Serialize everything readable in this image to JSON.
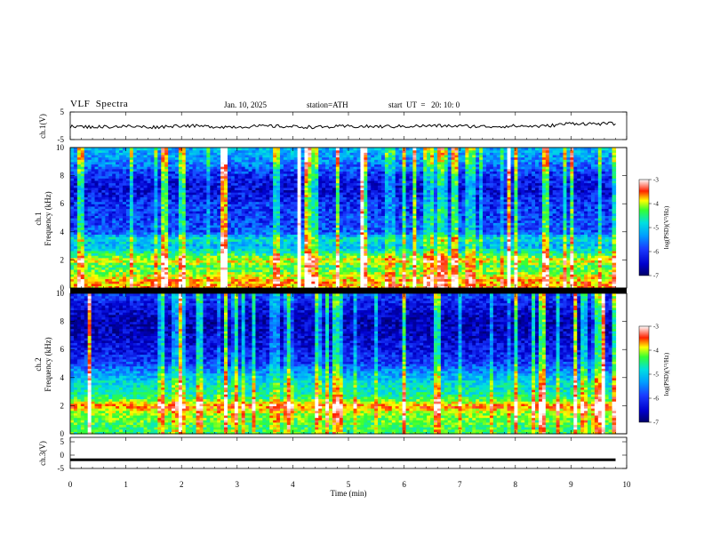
{
  "header": {
    "title": "VLF  Spectra",
    "date": "Jan. 10, 2025",
    "station": "station=ATH",
    "start": "start  UT  =   20: 10: 0"
  },
  "colors": {
    "spectrogram_scale": [
      "#000066",
      "#0000cc",
      "#1a3cff",
      "#00a0ff",
      "#00e0e0",
      "#33ff33",
      "#ffff00",
      "#ff2200",
      "#ffffff"
    ],
    "trace": "#000000"
  },
  "chart_data": [
    {
      "type": "line",
      "panel": "ch1-waveform",
      "ylabel": "ch.1(V)",
      "ylim": [
        -5,
        5
      ],
      "yticks": [
        "5",
        "-5"
      ],
      "x": [
        0,
        0.5,
        1,
        1.5,
        2,
        2.5,
        3,
        3.5,
        4,
        4.5,
        5,
        5.5,
        6,
        6.5,
        7,
        7.5,
        8,
        8.5,
        9,
        9.5,
        9.8
      ],
      "values": [
        -0.3,
        -0.4,
        -0.2,
        -0.5,
        0.1,
        -0.3,
        -0.4,
        -0.1,
        -0.3,
        -0.5,
        -0.2,
        -0.3,
        -0.2,
        0.0,
        -0.1,
        -0.3,
        -0.1,
        -0.2,
        0.9,
        0.7,
        0.8
      ],
      "grid": false
    },
    {
      "type": "heatmap",
      "panel": "ch1-spectrogram",
      "xlabel": "Time  (min)",
      "ylabel": "Frequency  (kHz)",
      "channel_label": "ch.1",
      "xlim": [
        0,
        10
      ],
      "ylim": [
        0,
        10
      ],
      "yticks": [
        "0",
        "2",
        "4",
        "6",
        "8",
        "10"
      ],
      "colorbar": {
        "label": "log(PSD)(V²/Hz)",
        "range": [
          -7,
          -3
        ],
        "ticks": [
          "-3",
          "-4",
          "-5",
          "-6",
          "-7"
        ]
      },
      "frequency_profile_log_psd": [
        {
          "f": 0.5,
          "v": -3.8
        },
        {
          "f": 1.0,
          "v": -4.2
        },
        {
          "f": 1.5,
          "v": -4.6
        },
        {
          "f": 2.0,
          "v": -4.0
        },
        {
          "f": 2.5,
          "v": -4.8
        },
        {
          "f": 3.0,
          "v": -5.4
        },
        {
          "f": 3.5,
          "v": -5.0
        },
        {
          "f": 4.0,
          "v": -5.9
        },
        {
          "f": 5.0,
          "v": -6.0
        },
        {
          "f": 6.0,
          "v": -6.1
        },
        {
          "f": 7.0,
          "v": -6.4
        },
        {
          "f": 8.0,
          "v": -6.2
        },
        {
          "f": 9.0,
          "v": -5.6
        },
        {
          "f": 10.0,
          "v": -5.3
        }
      ]
    },
    {
      "type": "heatmap",
      "panel": "ch2-spectrogram",
      "xlabel": "Time  (min)",
      "ylabel": "Frequency  (kHz)",
      "channel_label": "ch.2",
      "xlim": [
        0,
        10
      ],
      "ylim": [
        0,
        10
      ],
      "yticks": [
        "0",
        "2",
        "4",
        "6",
        "8",
        "10"
      ],
      "colorbar": {
        "label": "log(PSD)(V²/Hz)",
        "range": [
          -7,
          -3
        ],
        "ticks": [
          "-3",
          "-4",
          "-5",
          "-6",
          "-7"
        ]
      },
      "frequency_profile_log_psd": [
        {
          "f": 0.5,
          "v": -4.6
        },
        {
          "f": 1.0,
          "v": -4.4
        },
        {
          "f": 1.5,
          "v": -4.3
        },
        {
          "f": 2.0,
          "v": -3.6
        },
        {
          "f": 2.5,
          "v": -4.6
        },
        {
          "f": 3.0,
          "v": -4.9
        },
        {
          "f": 3.5,
          "v": -5.0
        },
        {
          "f": 4.0,
          "v": -5.3
        },
        {
          "f": 4.5,
          "v": -5.6
        },
        {
          "f": 5.0,
          "v": -6.0
        },
        {
          "f": 6.0,
          "v": -6.3
        },
        {
          "f": 7.0,
          "v": -6.5
        },
        {
          "f": 8.0,
          "v": -6.6
        },
        {
          "f": 9.0,
          "v": -6.4
        },
        {
          "f": 10.0,
          "v": -6.0
        }
      ]
    },
    {
      "type": "line",
      "panel": "ch3-waveform",
      "ylabel": "ch.3(V)",
      "ylim": [
        -5,
        5
      ],
      "yticks": [
        "5",
        "0",
        "-5"
      ],
      "x": [
        0,
        9.8
      ],
      "values": [
        -2.2,
        -2.2
      ],
      "xlabel": "Time  (min)",
      "xticks": [
        "0",
        "1",
        "2",
        "3",
        "4",
        "5",
        "6",
        "7",
        "8",
        "9",
        "10"
      ],
      "xlim": [
        0,
        10
      ]
    }
  ]
}
